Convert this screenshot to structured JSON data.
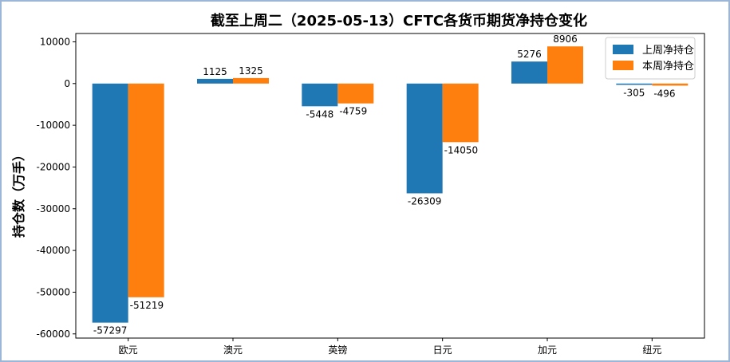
{
  "chart_data": {
    "type": "bar",
    "title": "截至上周二（2025-05-13）CFTC各货币期货净持仓变化",
    "xlabel": "",
    "ylabel": "持仓数（万手）",
    "categories": [
      "欧元",
      "澳元",
      "英镑",
      "日元",
      "加元",
      "纽元"
    ],
    "series": [
      {
        "name": "上周净持仓",
        "color": "#1f77b4",
        "values": [
          -57297,
          1125,
          -5448,
          -26309,
          5276,
          -305
        ]
      },
      {
        "name": "本周净持仓",
        "color": "#ff7f0e",
        "values": [
          -51219,
          1325,
          -4759,
          -14050,
          8906,
          -496
        ]
      }
    ],
    "yticks": [
      10000,
      0,
      -10000,
      -20000,
      -30000,
      -40000,
      -50000,
      -60000
    ],
    "ylim": [
      -61000,
      12000
    ],
    "grid": false,
    "legend_position": "top-right"
  }
}
